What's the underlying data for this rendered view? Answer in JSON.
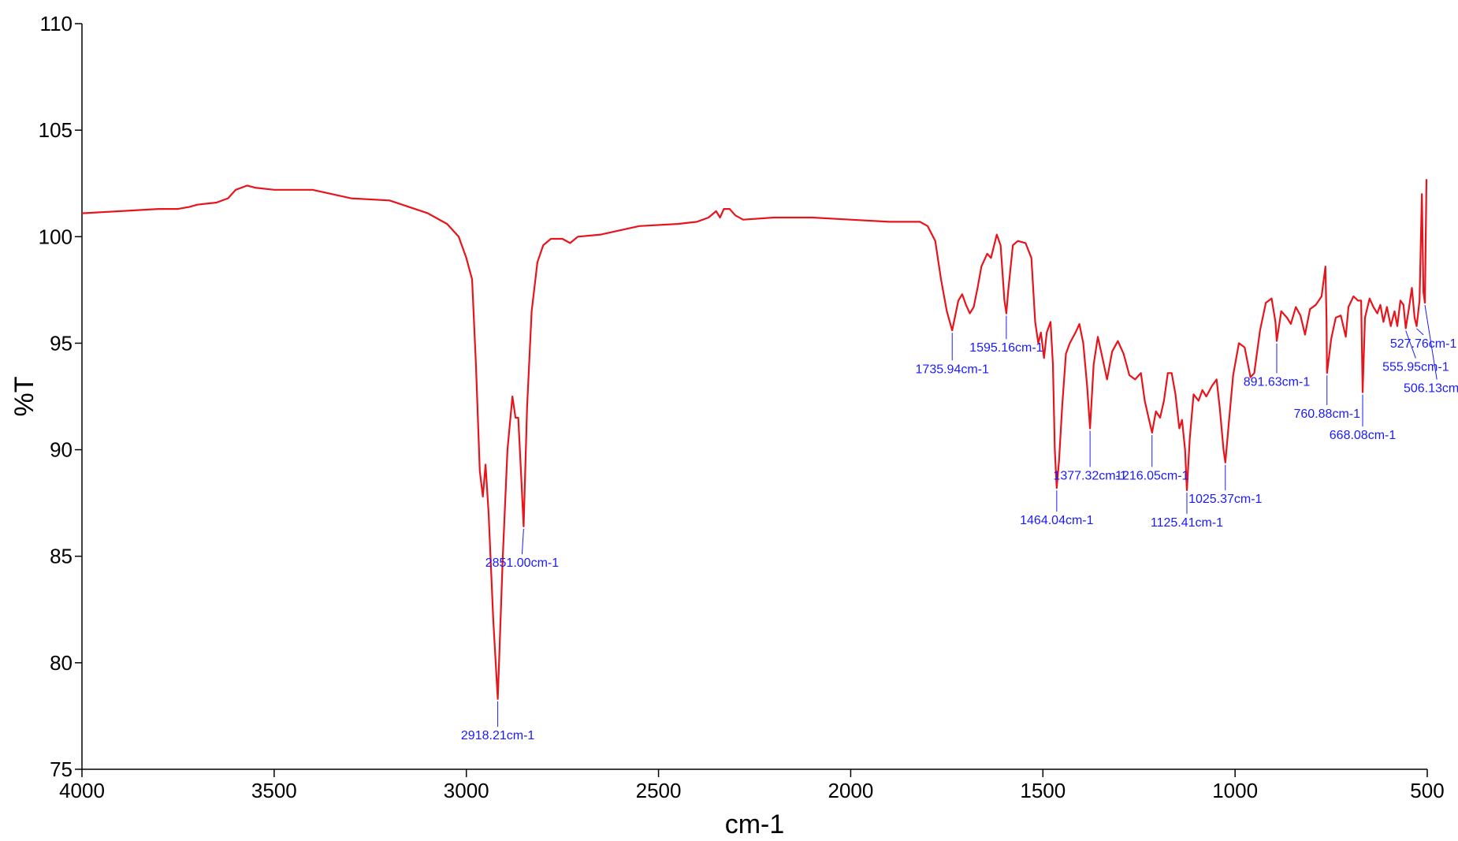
{
  "chart_data": {
    "type": "line",
    "xlabel": "cm-1",
    "ylabel": "%T",
    "xlim": [
      4000,
      500
    ],
    "ylim": [
      75,
      110
    ],
    "x_ticks": [
      4000,
      3500,
      3000,
      2500,
      2000,
      1500,
      1000,
      500
    ],
    "y_ticks": [
      75,
      80,
      85,
      90,
      95,
      100,
      105,
      110
    ],
    "grid": false,
    "colors": {
      "line": "#e8141c",
      "annotation": "#1a1aff",
      "axis": "#000000"
    },
    "series": [
      {
        "points": [
          [
            4000,
            101.1
          ],
          [
            3900,
            101.2
          ],
          [
            3800,
            101.3
          ],
          [
            3750,
            101.3
          ],
          [
            3720,
            101.4
          ],
          [
            3700,
            101.5
          ],
          [
            3650,
            101.6
          ],
          [
            3620,
            101.8
          ],
          [
            3600,
            102.2
          ],
          [
            3570,
            102.4
          ],
          [
            3550,
            102.3
          ],
          [
            3500,
            102.2
          ],
          [
            3400,
            102.2
          ],
          [
            3300,
            101.8
          ],
          [
            3200,
            101.7
          ],
          [
            3150,
            101.4
          ],
          [
            3100,
            101.1
          ],
          [
            3050,
            100.6
          ],
          [
            3020,
            100.0
          ],
          [
            3000,
            99.0
          ],
          [
            2985,
            98.0
          ],
          [
            2975,
            94.0
          ],
          [
            2965,
            89.0
          ],
          [
            2957,
            87.8
          ],
          [
            2950,
            89.3
          ],
          [
            2942,
            87.0
          ],
          [
            2930,
            82.0
          ],
          [
            2918.21,
            78.3
          ],
          [
            2905,
            85.0
          ],
          [
            2893,
            90.0
          ],
          [
            2880,
            92.5
          ],
          [
            2872,
            91.5
          ],
          [
            2865,
            91.5
          ],
          [
            2858,
            89.0
          ],
          [
            2851.0,
            86.4
          ],
          [
            2842,
            92.0
          ],
          [
            2830,
            96.5
          ],
          [
            2815,
            98.8
          ],
          [
            2800,
            99.6
          ],
          [
            2780,
            99.9
          ],
          [
            2750,
            99.9
          ],
          [
            2730,
            99.7
          ],
          [
            2710,
            100.0
          ],
          [
            2650,
            100.1
          ],
          [
            2600,
            100.3
          ],
          [
            2550,
            100.5
          ],
          [
            2450,
            100.6
          ],
          [
            2400,
            100.7
          ],
          [
            2370,
            100.9
          ],
          [
            2350,
            101.2
          ],
          [
            2340,
            100.9
          ],
          [
            2330,
            101.3
          ],
          [
            2315,
            101.3
          ],
          [
            2300,
            101.0
          ],
          [
            2280,
            100.8
          ],
          [
            2200,
            100.9
          ],
          [
            2100,
            100.9
          ],
          [
            2000,
            100.8
          ],
          [
            1900,
            100.7
          ],
          [
            1820,
            100.7
          ],
          [
            1800,
            100.5
          ],
          [
            1780,
            99.8
          ],
          [
            1765,
            98.0
          ],
          [
            1750,
            96.5
          ],
          [
            1735.94,
            95.6
          ],
          [
            1720,
            97.0
          ],
          [
            1710,
            97.3
          ],
          [
            1700,
            96.8
          ],
          [
            1690,
            96.4
          ],
          [
            1680,
            96.7
          ],
          [
            1670,
            97.6
          ],
          [
            1660,
            98.6
          ],
          [
            1645,
            99.2
          ],
          [
            1635,
            99.0
          ],
          [
            1620,
            100.1
          ],
          [
            1610,
            99.6
          ],
          [
            1600,
            97.0
          ],
          [
            1595.16,
            96.4
          ],
          [
            1590,
            97.5
          ],
          [
            1578,
            99.6
          ],
          [
            1565,
            99.8
          ],
          [
            1545,
            99.7
          ],
          [
            1530,
            99.0
          ],
          [
            1520,
            96.0
          ],
          [
            1512,
            95.0
          ],
          [
            1505,
            95.5
          ],
          [
            1497,
            94.3
          ],
          [
            1490,
            95.5
          ],
          [
            1480,
            96.0
          ],
          [
            1474,
            94.0
          ],
          [
            1469,
            90.0
          ],
          [
            1464.04,
            88.2
          ],
          [
            1458,
            89.5
          ],
          [
            1450,
            92.0
          ],
          [
            1440,
            94.5
          ],
          [
            1430,
            95.0
          ],
          [
            1415,
            95.5
          ],
          [
            1405,
            95.9
          ],
          [
            1395,
            95.0
          ],
          [
            1385,
            93.0
          ],
          [
            1377.32,
            91.0
          ],
          [
            1368,
            94.0
          ],
          [
            1357,
            95.3
          ],
          [
            1345,
            94.3
          ],
          [
            1333,
            93.3
          ],
          [
            1320,
            94.6
          ],
          [
            1305,
            95.1
          ],
          [
            1290,
            94.5
          ],
          [
            1275,
            93.5
          ],
          [
            1260,
            93.3
          ],
          [
            1245,
            93.6
          ],
          [
            1235,
            92.3
          ],
          [
            1225,
            91.5
          ],
          [
            1216.05,
            90.8
          ],
          [
            1206,
            91.8
          ],
          [
            1195,
            91.5
          ],
          [
            1185,
            92.3
          ],
          [
            1175,
            93.6
          ],
          [
            1165,
            93.6
          ],
          [
            1155,
            92.6
          ],
          [
            1145,
            91.0
          ],
          [
            1138,
            91.4
          ],
          [
            1130,
            90.0
          ],
          [
            1125.41,
            88.1
          ],
          [
            1118,
            90.5
          ],
          [
            1108,
            92.6
          ],
          [
            1095,
            92.3
          ],
          [
            1085,
            92.8
          ],
          [
            1075,
            92.5
          ],
          [
            1060,
            93.0
          ],
          [
            1048,
            93.3
          ],
          [
            1040,
            92.0
          ],
          [
            1030,
            90.0
          ],
          [
            1025.37,
            89.4
          ],
          [
            1015,
            91.5
          ],
          [
            1005,
            93.5
          ],
          [
            990,
            95.0
          ],
          [
            975,
            94.8
          ],
          [
            960,
            93.4
          ],
          [
            950,
            93.6
          ],
          [
            935,
            95.6
          ],
          [
            920,
            96.9
          ],
          [
            905,
            97.1
          ],
          [
            895,
            96.0
          ],
          [
            891.63,
            95.1
          ],
          [
            880,
            96.5
          ],
          [
            865,
            96.2
          ],
          [
            855,
            95.9
          ],
          [
            842,
            96.7
          ],
          [
            830,
            96.3
          ],
          [
            818,
            95.4
          ],
          [
            805,
            96.6
          ],
          [
            790,
            96.8
          ],
          [
            775,
            97.2
          ],
          [
            765,
            98.6
          ],
          [
            762,
            96.0
          ],
          [
            760.88,
            93.6
          ],
          [
            750,
            95.2
          ],
          [
            738,
            96.2
          ],
          [
            725,
            96.3
          ],
          [
            712,
            95.3
          ],
          [
            705,
            96.7
          ],
          [
            692,
            97.2
          ],
          [
            680,
            97.0
          ],
          [
            672,
            97.0
          ],
          [
            668.08,
            92.7
          ],
          [
            662,
            96.2
          ],
          [
            650,
            97.1
          ],
          [
            640,
            96.7
          ],
          [
            630,
            96.4
          ],
          [
            622,
            96.8
          ],
          [
            614,
            96.0
          ],
          [
            605,
            96.7
          ],
          [
            595,
            95.8
          ],
          [
            585,
            96.5
          ],
          [
            578,
            95.8
          ],
          [
            570,
            97.0
          ],
          [
            562,
            96.8
          ],
          [
            555.95,
            95.7
          ],
          [
            548,
            96.6
          ],
          [
            540,
            97.6
          ],
          [
            533,
            96.2
          ],
          [
            527.76,
            95.8
          ],
          [
            520,
            97.0
          ],
          [
            514,
            102.0
          ],
          [
            510,
            97.4
          ],
          [
            506.13,
            96.9
          ],
          [
            502,
            102.7
          ]
        ]
      }
    ],
    "annotations": [
      {
        "x": 2918.21,
        "y": 78.3,
        "text": "2918.21cm-1",
        "label_y": 76.4,
        "label_x": 2918.21
      },
      {
        "x": 2851.0,
        "y": 86.4,
        "text": "2851.00cm-1",
        "label_y": 84.5,
        "label_x": 2855
      },
      {
        "x": 1735.94,
        "y": 95.6,
        "text": "1735.94cm-1",
        "label_y": 93.6,
        "label_x": 1735.94
      },
      {
        "x": 1595.16,
        "y": 96.4,
        "text": "1595.16cm-1",
        "label_y": 94.6,
        "label_x": 1595.16
      },
      {
        "x": 1464.04,
        "y": 88.2,
        "text": "1464.04cm-1",
        "label_y": 86.5,
        "label_x": 1464.04
      },
      {
        "x": 1377.32,
        "y": 91.0,
        "text": "1377.32cm-1",
        "label_y": 88.6,
        "label_x": 1377.32
      },
      {
        "x": 1216.05,
        "y": 90.8,
        "text": "1216.05cm-1",
        "label_y": 88.6,
        "label_x": 1216.05
      },
      {
        "x": 1125.41,
        "y": 88.1,
        "text": "1125.41cm-1",
        "label_y": 86.4,
        "label_x": 1125.41
      },
      {
        "x": 1025.37,
        "y": 89.4,
        "text": "1025.37cm-1",
        "label_y": 87.5,
        "label_x": 1025.37
      },
      {
        "x": 891.63,
        "y": 95.1,
        "text": "891.63cm-1",
        "label_y": 93.0,
        "label_x": 891.63
      },
      {
        "x": 760.88,
        "y": 93.6,
        "text": "760.88cm-1",
        "label_y": 91.5,
        "label_x": 760.88
      },
      {
        "x": 668.08,
        "y": 92.7,
        "text": "668.08cm-1",
        "label_y": 90.5,
        "label_x": 668.08
      },
      {
        "x": 527.76,
        "y": 95.8,
        "text": "527.76cm-1",
        "label_y": 94.8,
        "label_x": 510
      },
      {
        "x": 555.95,
        "y": 95.7,
        "text": "555.95cm-1",
        "label_y": 93.7,
        "label_x": 530
      },
      {
        "x": 506.13,
        "y": 96.9,
        "text": "506.13cm-1",
        "label_y": 92.7,
        "label_x": 475
      }
    ]
  }
}
